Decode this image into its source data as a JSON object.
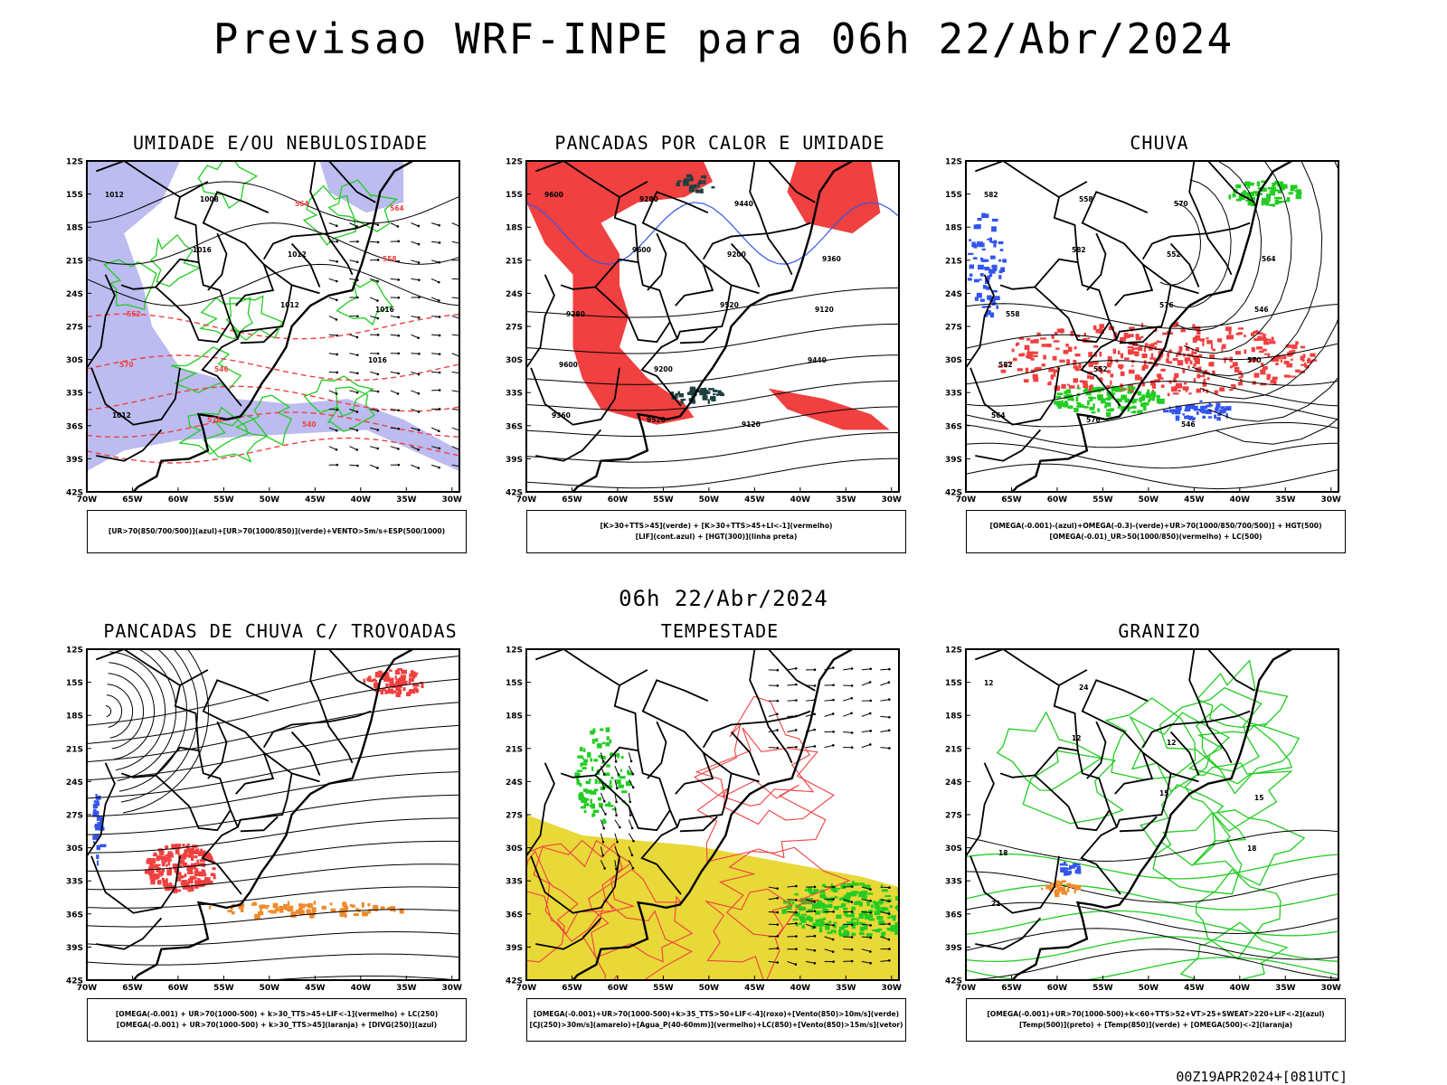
{
  "title": "Previsao WRF-INPE  para 06h 22/Abr/2024",
  "mid_title": "06h 22/Abr/2024",
  "footer": "00Z19APR2024+[081UTC]",
  "lat_labels": [
    "12S",
    "15S",
    "18S",
    "21S",
    "24S",
    "27S",
    "30S",
    "33S",
    "36S",
    "39S",
    "42S"
  ],
  "lon_labels": [
    "70W",
    "65W",
    "60W",
    "55W",
    "50W",
    "45W",
    "40W",
    "35W",
    "30W"
  ],
  "colors": {
    "red": "#f04040",
    "green": "#22cc22",
    "blue": "#3355ee",
    "lavender": "#b0b0ee",
    "orange": "#f08a2a",
    "yellow": "#e8d838",
    "darkteal": "#1e4040",
    "black": "#000000"
  },
  "panels": [
    {
      "title": "UMIDADE E/OU NEBULOSIDADE",
      "legend": [
        "[UR>70(850/700/500)](azul)+[UR>70(1000/850)](verde)+VENTO>5m/s+ESP(500/1000)"
      ],
      "contour_labels": [
        "1012",
        "1016",
        "1012",
        "1016",
        "1012",
        "1008",
        "1012",
        "1016",
        "570",
        "576",
        "564",
        "558",
        "552",
        "546",
        "540",
        "564"
      ]
    },
    {
      "title": "PANCADAS POR CALOR E UMIDADE",
      "legend": [
        "[K>30+TTS>45](verde) + [K>30+TTS>45+LI<-1](vermelho)",
        "[LIF](cont.azul) + [HGT(300)](linha preta)"
      ],
      "contour_labels": [
        "9600",
        "9600",
        "9520",
        "9440",
        "9360",
        "9280",
        "9200",
        "9120",
        "9600",
        "9520",
        "9440",
        "9360",
        "9280",
        "9200",
        "9120"
      ]
    },
    {
      "title": "CHUVA",
      "legend": [
        "[OMEGA(-0.001)-(azul)+OMEGA(-0.3)-(verde)+UR>70(1000/850/700/500)] + HGT(500)",
        "[OMEGA(-0.01)_UR>50(1000/850)(vermelho) + LC(500)"
      ],
      "contour_labels": [
        "582",
        "582",
        "576",
        "570",
        "564",
        "558",
        "552",
        "546",
        "582",
        "576",
        "570",
        "564",
        "558",
        "552",
        "546"
      ]
    },
    {
      "title": "PANCADAS DE CHUVA C/ TROVOADAS",
      "legend": [
        "[OMEGA(-0.001) + UR>70(1000-500) + k>30_TTS>45+LIF<-1](vermelho) + LC(250)",
        "[OMEGA(-0.001) + UR>70(1000-500) + k>30_TTS>45](laranja) + [DIVG(250)](azul)"
      ],
      "contour_labels": []
    },
    {
      "title": "TEMPESTADE",
      "legend": [
        "[OMEGA(-0.001)+UR>70(1000-500)+k>35_TTS>50+LIF<-4](roxo)+[Vento(850)>10m/s](verde)",
        "[CJ(250)>30m/s](amarelo)+[Agua_P(40-60mm)](vermelho)+LC(850)+[Vento(850)>15m/s](vetor)"
      ],
      "contour_labels": []
    },
    {
      "title": "GRANIZO",
      "legend": [
        "[OMEGA(-0.001)+UR>70(1000-500)+k<60+TTS>52+VT>25+SWEAT>220+LIF<-2](azul)",
        "[Temp(500)](preto) + [Temp(850)](verde) + [OMEGA(500)<-2](laranja)"
      ],
      "contour_labels": [
        "12",
        "12",
        "15",
        "18",
        "21",
        "24",
        "12",
        "15",
        "18"
      ]
    }
  ]
}
